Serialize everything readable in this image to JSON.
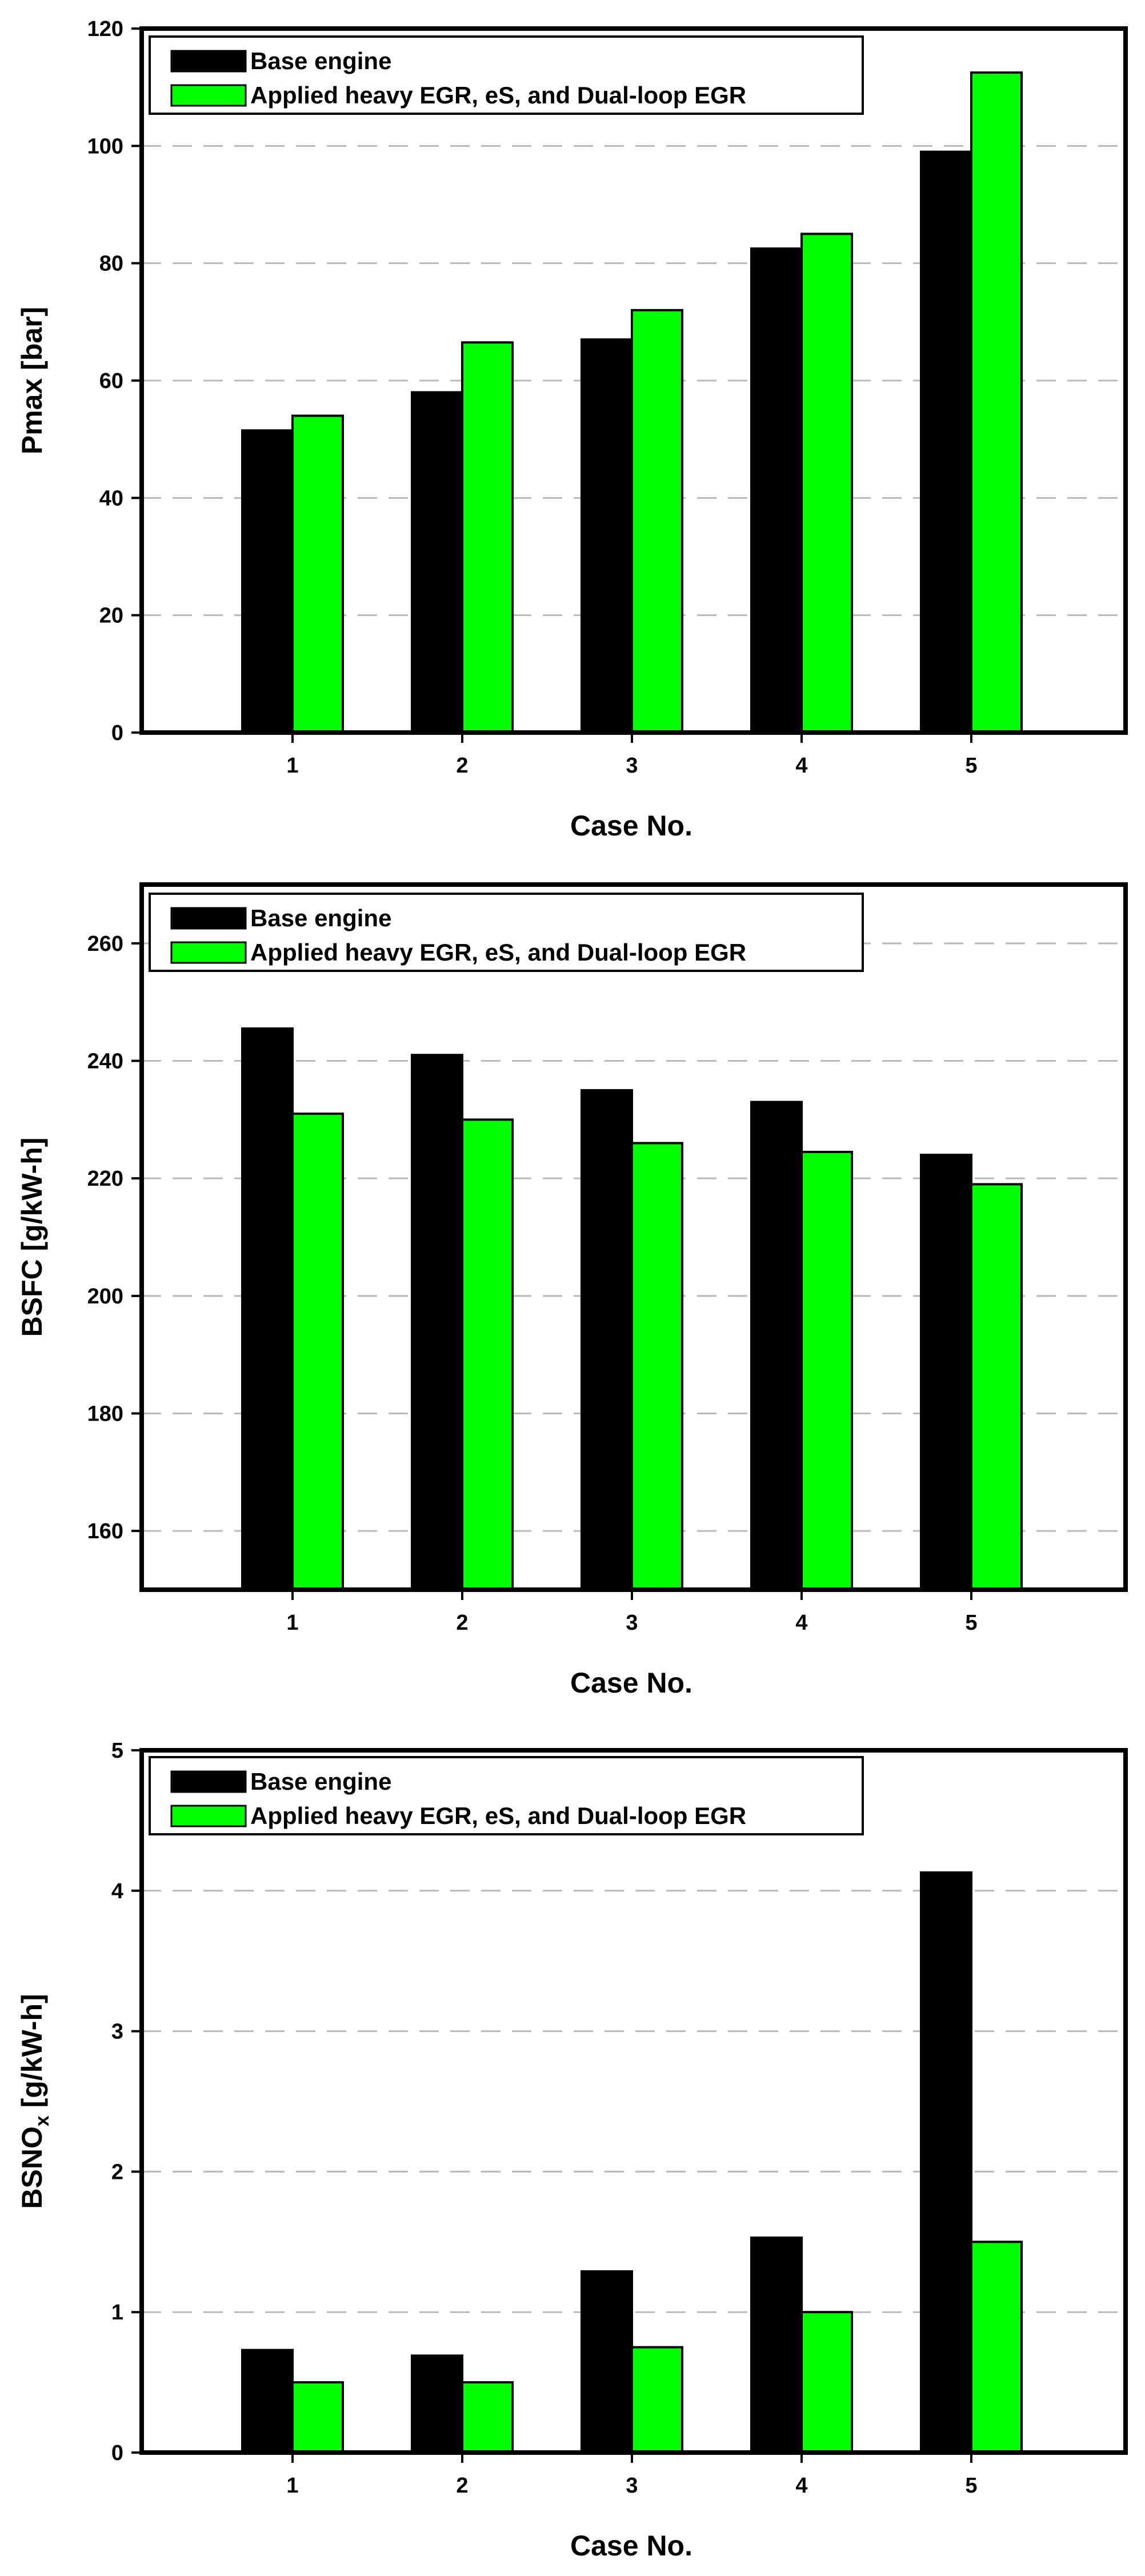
{
  "chart_data": [
    {
      "type": "bar",
      "title": "",
      "xlabel": "Case No.",
      "ylabel": "Pmax [bar]",
      "ylim": [
        0,
        120
      ],
      "yticks": [
        0,
        20,
        40,
        60,
        80,
        100,
        120
      ],
      "grid": true,
      "legend_position": "top-left",
      "categories": [
        "1",
        "2",
        "3",
        "4",
        "5"
      ],
      "series": [
        {
          "name": "Base engine",
          "color": "#000000",
          "values": [
            51.5,
            58,
            67,
            82.5,
            99
          ]
        },
        {
          "name": "Applied heavy EGR, eS, and Dual-loop EGR",
          "color": "#00ff00",
          "values": [
            54,
            66.5,
            72,
            85,
            112.5
          ]
        }
      ]
    },
    {
      "type": "bar",
      "title": "",
      "xlabel": "Case No.",
      "ylabel": "BSFC [g/kW-h]",
      "ylim": [
        150,
        270
      ],
      "yticks": [
        160,
        180,
        200,
        220,
        240,
        260
      ],
      "grid": true,
      "legend_position": "top-left",
      "categories": [
        "1",
        "2",
        "3",
        "4",
        "5"
      ],
      "series": [
        {
          "name": "Base engine",
          "color": "#000000",
          "values": [
            245.5,
            241,
            235,
            233,
            224
          ]
        },
        {
          "name": "Applied heavy EGR, eS, and Dual-loop EGR",
          "color": "#00ff00",
          "values": [
            231,
            230,
            226,
            224.5,
            219
          ]
        }
      ]
    },
    {
      "type": "bar",
      "title": "",
      "xlabel": "Case No.",
      "ylabel_main": "BSNO",
      "ylabel_sub": "x",
      "ylabel_unit": " [g/kW-h]",
      "ylim": [
        0,
        5
      ],
      "yticks": [
        0,
        1,
        2,
        3,
        4,
        5
      ],
      "grid": true,
      "legend_position": "top-left",
      "categories": [
        "1",
        "2",
        "3",
        "4",
        "5"
      ],
      "series": [
        {
          "name": "Base engine",
          "color": "#000000",
          "values": [
            0.73,
            0.69,
            1.29,
            1.53,
            4.13
          ]
        },
        {
          "name": "Applied heavy EGR, eS, and Dual-loop EGR",
          "color": "#00ff00",
          "values": [
            0.5,
            0.5,
            0.75,
            1.0,
            1.5
          ]
        }
      ]
    }
  ]
}
